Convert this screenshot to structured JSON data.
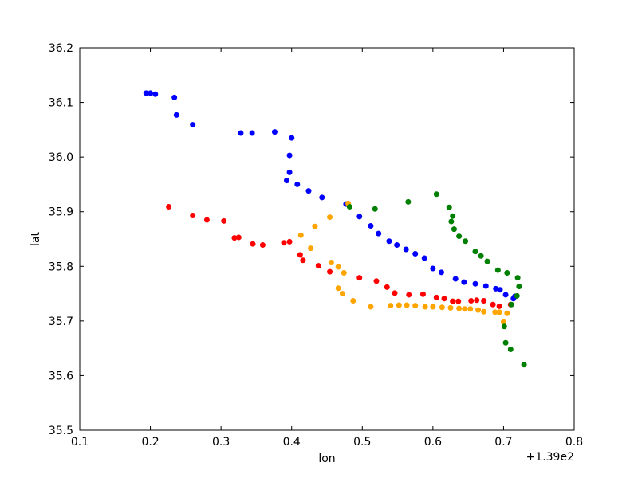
{
  "chart_data": {
    "type": "scatter",
    "xlabel": "lon",
    "ylabel": "lat",
    "x_offset_label": "+1.39e2",
    "xlim": [
      0.1,
      0.8
    ],
    "ylim": [
      35.5,
      36.2
    ],
    "x_ticks": [
      0.1,
      0.2,
      0.3,
      0.4,
      0.5,
      0.6,
      0.7,
      0.8
    ],
    "y_ticks": [
      35.5,
      35.6,
      35.7,
      35.8,
      35.9,
      36.0,
      36.1,
      36.2
    ],
    "x_tick_labels": [
      "0.1",
      "0.2",
      "0.3",
      "0.4",
      "0.5",
      "0.6",
      "0.7",
      "0.8"
    ],
    "y_tick_labels": [
      "35.5",
      "35.6",
      "35.7",
      "35.8",
      "35.9",
      "36.0",
      "36.1",
      "36.2"
    ],
    "grid": false,
    "legend": "none",
    "series": [
      {
        "color": "#0000ff",
        "points": [
          [
            0.194,
            36.117
          ],
          [
            0.2,
            36.117
          ],
          [
            0.207,
            36.115
          ],
          [
            0.234,
            36.109
          ],
          [
            0.237,
            36.077
          ],
          [
            0.26,
            36.059
          ],
          [
            0.328,
            36.044
          ],
          [
            0.344,
            36.044
          ],
          [
            0.376,
            36.046
          ],
          [
            0.4,
            36.035
          ],
          [
            0.397,
            36.003
          ],
          [
            0.397,
            35.972
          ],
          [
            0.393,
            35.957
          ],
          [
            0.408,
            35.95
          ],
          [
            0.424,
            35.938
          ],
          [
            0.443,
            35.926
          ],
          [
            0.477,
            35.914
          ],
          [
            0.496,
            35.891
          ],
          [
            0.512,
            35.874
          ],
          [
            0.523,
            35.86
          ],
          [
            0.538,
            35.846
          ],
          [
            0.549,
            35.839
          ],
          [
            0.562,
            35.831
          ],
          [
            0.575,
            35.823
          ],
          [
            0.588,
            35.815
          ],
          [
            0.6,
            35.796
          ],
          [
            0.612,
            35.789
          ],
          [
            0.632,
            35.777
          ],
          [
            0.644,
            35.771
          ],
          [
            0.66,
            35.768
          ],
          [
            0.675,
            35.764
          ],
          [
            0.689,
            35.759
          ],
          [
            0.695,
            35.757
          ],
          [
            0.703,
            35.748
          ],
          [
            0.716,
            35.745
          ],
          [
            0.714,
            35.741
          ]
        ]
      },
      {
        "color": "#ff0000",
        "points": [
          [
            0.226,
            35.909
          ],
          [
            0.26,
            35.893
          ],
          [
            0.28,
            35.885
          ],
          [
            0.304,
            35.883
          ],
          [
            0.319,
            35.852
          ],
          [
            0.325,
            35.853
          ],
          [
            0.345,
            35.841
          ],
          [
            0.359,
            35.839
          ],
          [
            0.389,
            35.843
          ],
          [
            0.397,
            35.845
          ],
          [
            0.412,
            35.821
          ],
          [
            0.416,
            35.811
          ],
          [
            0.438,
            35.801
          ],
          [
            0.454,
            35.79
          ],
          [
            0.496,
            35.779
          ],
          [
            0.52,
            35.773
          ],
          [
            0.535,
            35.762
          ],
          [
            0.546,
            35.751
          ],
          [
            0.566,
            35.748
          ],
          [
            0.586,
            35.749
          ],
          [
            0.605,
            35.743
          ],
          [
            0.616,
            35.741
          ],
          [
            0.628,
            35.736
          ],
          [
            0.636,
            35.736
          ],
          [
            0.654,
            35.737
          ],
          [
            0.662,
            35.738
          ],
          [
            0.672,
            35.737
          ],
          [
            0.685,
            35.73
          ],
          [
            0.694,
            35.727
          ],
          [
            0.71,
            35.73
          ]
        ]
      },
      {
        "color": "#ffa500",
        "points": [
          [
            0.48,
            35.915
          ],
          [
            0.454,
            35.89
          ],
          [
            0.433,
            35.873
          ],
          [
            0.413,
            35.857
          ],
          [
            0.427,
            35.833
          ],
          [
            0.456,
            35.807
          ],
          [
            0.466,
            35.799
          ],
          [
            0.474,
            35.788
          ],
          [
            0.466,
            35.76
          ],
          [
            0.472,
            35.75
          ],
          [
            0.487,
            35.737
          ],
          [
            0.512,
            35.726
          ],
          [
            0.54,
            35.728
          ],
          [
            0.552,
            35.729
          ],
          [
            0.563,
            35.729
          ],
          [
            0.575,
            35.728
          ],
          [
            0.589,
            35.726
          ],
          [
            0.6,
            35.726
          ],
          [
            0.613,
            35.725
          ],
          [
            0.625,
            35.724
          ],
          [
            0.637,
            35.723
          ],
          [
            0.645,
            35.722
          ],
          [
            0.653,
            35.722
          ],
          [
            0.664,
            35.72
          ],
          [
            0.672,
            35.717
          ],
          [
            0.688,
            35.716
          ],
          [
            0.694,
            35.716
          ],
          [
            0.705,
            35.714
          ],
          [
            0.7,
            35.698
          ]
        ]
      },
      {
        "color": "#008000",
        "points": [
          [
            0.482,
            35.909
          ],
          [
            0.518,
            35.905
          ],
          [
            0.565,
            35.918
          ],
          [
            0.605,
            35.932
          ],
          [
            0.623,
            35.908
          ],
          [
            0.628,
            35.892
          ],
          [
            0.626,
            35.882
          ],
          [
            0.63,
            35.868
          ],
          [
            0.637,
            35.855
          ],
          [
            0.646,
            35.846
          ],
          [
            0.66,
            35.827
          ],
          [
            0.668,
            35.819
          ],
          [
            0.677,
            35.809
          ],
          [
            0.692,
            35.793
          ],
          [
            0.705,
            35.788
          ],
          [
            0.72,
            35.779
          ],
          [
            0.722,
            35.763
          ],
          [
            0.719,
            35.746
          ],
          [
            0.711,
            35.73
          ],
          [
            0.701,
            35.69
          ],
          [
            0.703,
            35.66
          ],
          [
            0.71,
            35.648
          ],
          [
            0.729,
            35.62
          ]
        ]
      }
    ]
  }
}
